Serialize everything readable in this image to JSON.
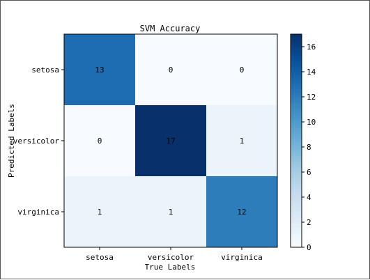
{
  "chart_data": {
    "type": "heatmap",
    "title": "SVM Accuracy",
    "xlabel": "True Labels",
    "ylabel": "Predicted Labels",
    "x_categories": [
      "setosa",
      "versicolor",
      "virginica"
    ],
    "y_categories": [
      "setosa",
      "versicolor",
      "virginica"
    ],
    "values": [
      [
        13,
        0,
        0
      ],
      [
        0,
        17,
        1
      ],
      [
        1,
        1,
        12
      ]
    ],
    "colormap": "Blues",
    "colorbar": {
      "range": [
        0,
        17
      ],
      "ticks": [
        0,
        2,
        4,
        6,
        8,
        10,
        12,
        14,
        16
      ]
    }
  }
}
